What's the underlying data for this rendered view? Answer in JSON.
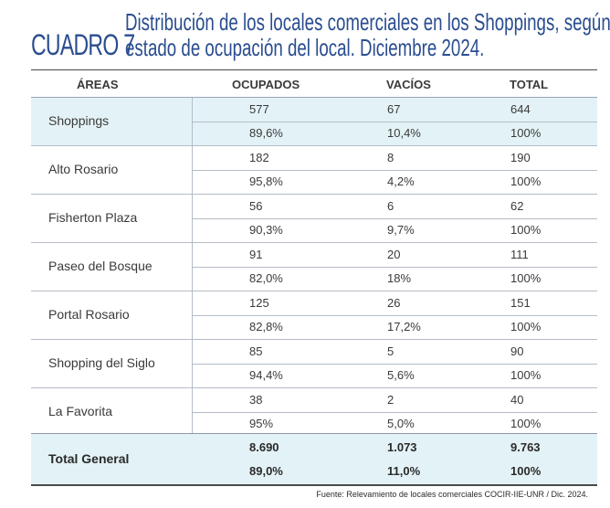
{
  "header": {
    "cuadro": "CUADRO 7",
    "title_line1": "Distribución de los locales comerciales en los Shoppings, según",
    "title_line2": "estado de ocupación del local. Diciembre 2024."
  },
  "columns": {
    "areas": "ÁREAS",
    "ocupados": "OCUPADOS",
    "vacios": "VACÍOS",
    "total": "TOTAL"
  },
  "rows": [
    {
      "area": "Shoppings",
      "ocupados": "577",
      "vacios": "67",
      "total": "644",
      "ocupados_pct": "89,6%",
      "vacios_pct": "10,4%",
      "total_pct": "100%"
    },
    {
      "area": "Alto Rosario",
      "ocupados": "182",
      "vacios": "8",
      "total": "190",
      "ocupados_pct": "95,8%",
      "vacios_pct": "4,2%",
      "total_pct": "100%"
    },
    {
      "area": "Fisherton Plaza",
      "ocupados": "56",
      "vacios": "6",
      "total": "62",
      "ocupados_pct": "90,3%",
      "vacios_pct": "9,7%",
      "total_pct": "100%"
    },
    {
      "area": "Paseo del Bosque",
      "ocupados": "91",
      "vacios": "20",
      "total": "111",
      "ocupados_pct": "82,0%",
      "vacios_pct": "18%",
      "total_pct": "100%"
    },
    {
      "area": "Portal Rosario",
      "ocupados": "125",
      "vacios": "26",
      "total": "151",
      "ocupados_pct": "82,8%",
      "vacios_pct": "17,2%",
      "total_pct": "100%"
    },
    {
      "area": "Shopping del Siglo",
      "ocupados": "85",
      "vacios": "5",
      "total": "90",
      "ocupados_pct": "94,4%",
      "vacios_pct": "5,6%",
      "total_pct": "100%"
    },
    {
      "area": "La Favorita",
      "ocupados": "38",
      "vacios": "2",
      "total": "40",
      "ocupados_pct": "95%",
      "vacios_pct": "5,0%",
      "total_pct": "100%"
    }
  ],
  "total_row": {
    "area": "Total General",
    "ocupados": "8.690",
    "vacios": "1.073",
    "total": "9.763",
    "ocupados_pct": "89,0%",
    "vacios_pct": "11,0%",
    "total_pct": "100%"
  },
  "source": "Fuente: Relevamiento de locales comerciales COCIR-IIE-UNR / Dic. 2024."
}
